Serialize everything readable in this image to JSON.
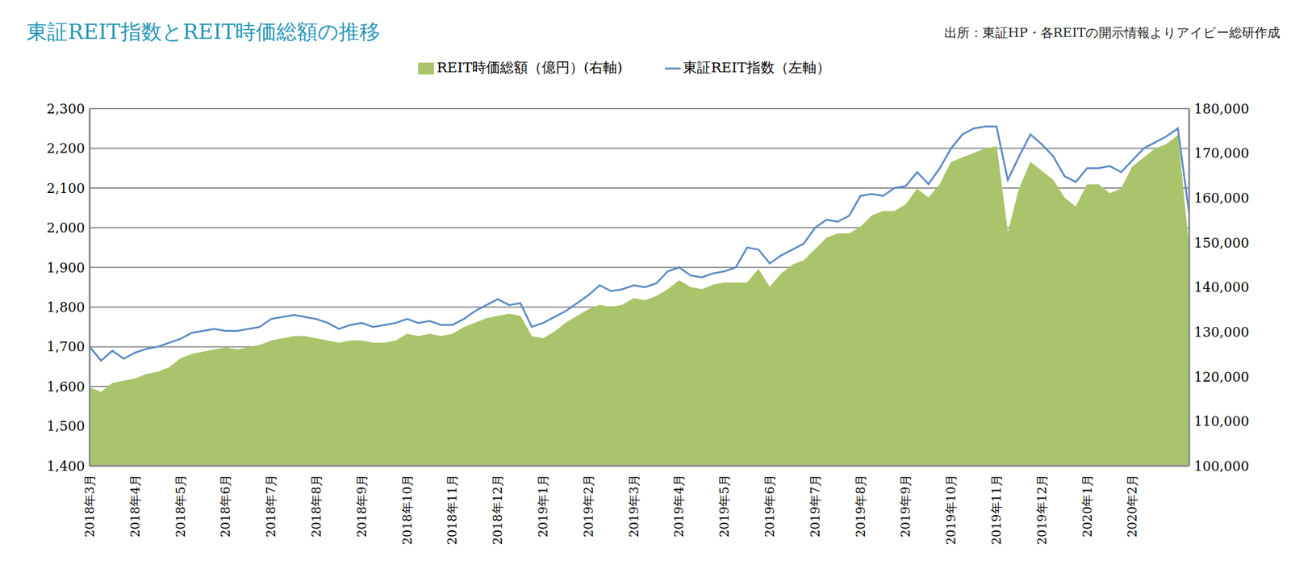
{
  "chart_data": {
    "type": "line",
    "title": "東証REIT指数とREIT時価総額の推移",
    "subtitle": "出所：東証HP・各REITの開示情報よりアイビー総研作成",
    "categories": [
      "2018年3月",
      null,
      null,
      null,
      "2018年4月",
      null,
      null,
      null,
      "2018年5月",
      null,
      null,
      null,
      "2018年6月",
      null,
      null,
      null,
      "2018年7月",
      null,
      null,
      null,
      "2018年8月",
      null,
      null,
      null,
      "2018年9月",
      null,
      null,
      null,
      "2018年10月",
      null,
      null,
      null,
      "2018年11月",
      null,
      null,
      null,
      "2018年12月",
      null,
      null,
      null,
      "2019年1月",
      null,
      null,
      null,
      "2019年2月",
      null,
      null,
      null,
      "2019年3月",
      null,
      null,
      null,
      "2019年4月",
      null,
      null,
      null,
      "2019年5月",
      null,
      null,
      null,
      "2019年6月",
      null,
      null,
      null,
      "2019年7月",
      null,
      null,
      null,
      "2019年8月",
      null,
      null,
      null,
      "2019年9月",
      null,
      null,
      null,
      "2019年10月",
      null,
      null,
      null,
      "2019年11月",
      null,
      null,
      null,
      "2019年12月",
      null,
      null,
      null,
      "2020年1月",
      null,
      null,
      null,
      "2020年2月",
      null,
      null,
      null,
      null,
      null
    ],
    "series": [
      {
        "name": "REIT時価総額（億円）(右軸)",
        "type": "area",
        "axis": "y2",
        "color": "#a9c46a",
        "values": [
          117500,
          116500,
          118500,
          119000,
          119500,
          120500,
          121000,
          122000,
          124000,
          125000,
          125500,
          126000,
          126500,
          126000,
          126500,
          127000,
          128000,
          128500,
          129000,
          129000,
          128500,
          128000,
          127500,
          128000,
          128000,
          127500,
          127500,
          128000,
          129500,
          129000,
          129500,
          129000,
          129500,
          131000,
          132000,
          133000,
          133500,
          134000,
          133500,
          129000,
          128500,
          130000,
          132000,
          133500,
          135000,
          136000,
          135500,
          136000,
          137500,
          137000,
          138000,
          139500,
          141500,
          140000,
          139500,
          140500,
          141000,
          141000,
          141000,
          144000,
          140000,
          143000,
          145000,
          146000,
          148500,
          151000,
          152000,
          152000,
          153500,
          156000,
          157000,
          157000,
          158500,
          162000,
          160000,
          163000,
          168000,
          169000,
          170000,
          171000,
          171500,
          152000,
          162000,
          168000,
          166000,
          164000,
          160000,
          158000,
          163000,
          163000,
          161000,
          162000,
          167000,
          169000,
          171000,
          172000,
          174000,
          148000
        ]
      },
      {
        "name": "東証REIT指数（左軸）",
        "type": "line",
        "color": "#5b8ac6",
        "values": [
          1700,
          1665,
          1690,
          1670,
          1685,
          1695,
          1700,
          1710,
          1720,
          1735,
          1740,
          1745,
          1740,
          1740,
          1745,
          1750,
          1770,
          1775,
          1780,
          1775,
          1770,
          1760,
          1745,
          1755,
          1760,
          1750,
          1755,
          1760,
          1770,
          1760,
          1765,
          1755,
          1755,
          1770,
          1790,
          1805,
          1820,
          1805,
          1810,
          1750,
          1760,
          1775,
          1790,
          1810,
          1830,
          1855,
          1840,
          1845,
          1855,
          1850,
          1860,
          1890,
          1900,
          1880,
          1875,
          1885,
          1890,
          1900,
          1950,
          1945,
          1910,
          1930,
          1945,
          1960,
          2000,
          2020,
          2015,
          2030,
          2080,
          2085,
          2080,
          2100,
          2105,
          2140,
          2110,
          2150,
          2200,
          2235,
          2250,
          2255,
          2255,
          2120,
          2180,
          2235,
          2210,
          2180,
          2130,
          2115,
          2150,
          2150,
          2155,
          2140,
          2170,
          2200,
          2215,
          2230,
          2250,
          2035
        ]
      }
    ],
    "ylim": [
      1400,
      2300
    ],
    "yticks": [
      {
        "value": 1400,
        "label": "1,400"
      },
      {
        "value": 1500,
        "label": "1,500"
      },
      {
        "value": 1600,
        "label": "1,600"
      },
      {
        "value": 1700,
        "label": "1,700"
      },
      {
        "value": 1800,
        "label": "1,800"
      },
      {
        "value": 1900,
        "label": "1,900"
      },
      {
        "value": 2000,
        "label": "2,000"
      },
      {
        "value": 2100,
        "label": "2,100"
      },
      {
        "value": 2200,
        "label": "2,200"
      },
      {
        "value": 2300,
        "label": "2,300"
      }
    ],
    "y2lim": [
      100000,
      180000
    ],
    "y2ticks": [
      {
        "value": 100000,
        "label": "100,000"
      },
      {
        "value": 110000,
        "label": "110,000"
      },
      {
        "value": 120000,
        "label": "120,000"
      },
      {
        "value": 130000,
        "label": "130,000"
      },
      {
        "value": 140000,
        "label": "140,000"
      },
      {
        "value": 150000,
        "label": "150,000"
      },
      {
        "value": 160000,
        "label": "160,000"
      },
      {
        "value": 170000,
        "label": "170,000"
      },
      {
        "value": 180000,
        "label": "180,000"
      }
    ],
    "grid": true,
    "legend": "top"
  }
}
